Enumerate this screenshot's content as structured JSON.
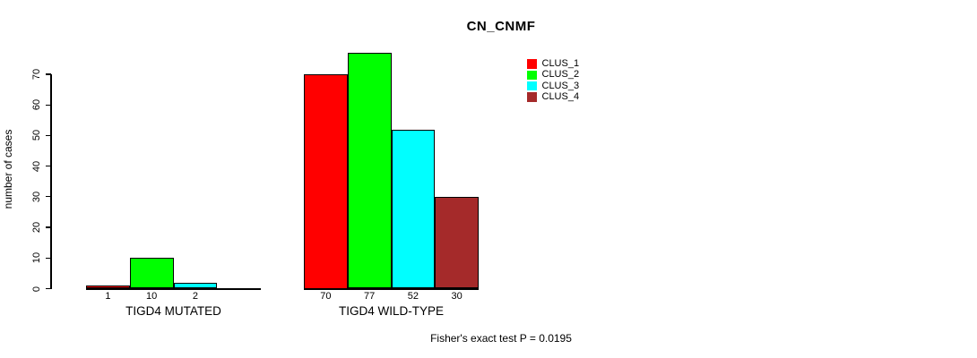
{
  "chart_data": {
    "type": "bar",
    "title": "CN_CNMF",
    "xlabel": "",
    "ylabel": "number of cases",
    "ylim": [
      0,
      70
    ],
    "yticks": [
      0,
      10,
      20,
      30,
      40,
      50,
      60,
      70
    ],
    "grid": false,
    "legend": {
      "position": "top-right",
      "entries": [
        {
          "label": "CLUS_1",
          "color": "#ff0000"
        },
        {
          "label": "CLUS_2",
          "color": "#00ff00"
        },
        {
          "label": "CLUS_3",
          "color": "#00ffff"
        },
        {
          "label": "CLUS_4",
          "color": "#a52a2a"
        }
      ]
    },
    "groups": [
      {
        "label": "TIGD4 MUTATED",
        "series": [
          "CLUS_1",
          "CLUS_2",
          "CLUS_3",
          "CLUS_4"
        ],
        "values": [
          1,
          10,
          2,
          0
        ],
        "value_labels": [
          "1",
          "10",
          "2",
          ""
        ]
      },
      {
        "label": "TIGD4 WILD-TYPE",
        "series": [
          "CLUS_1",
          "CLUS_2",
          "CLUS_3",
          "CLUS_4"
        ],
        "values": [
          70,
          77,
          52,
          30
        ],
        "value_labels": [
          "70",
          "77",
          "52",
          "30"
        ]
      }
    ],
    "annotation": "Fisher's exact test P = 0.0195"
  }
}
